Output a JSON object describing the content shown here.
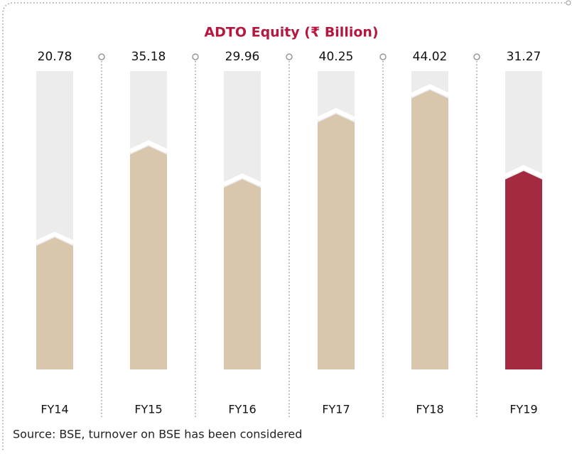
{
  "chart_data": {
    "type": "bar",
    "title": "ADTO Equity (₹ Billion)",
    "categories": [
      "FY14",
      "FY15",
      "FY16",
      "FY17",
      "FY18",
      "FY19"
    ],
    "values": [
      20.78,
      35.18,
      29.96,
      40.25,
      44.02,
      31.27
    ],
    "colors": [
      "#d8c6ad",
      "#d8c6ad",
      "#d8c6ad",
      "#d8c6ad",
      "#d8c6ad",
      "#a32a40"
    ],
    "ylim": [
      0,
      47
    ],
    "source": "Source: BSE, turnover on BSE has been considered"
  }
}
